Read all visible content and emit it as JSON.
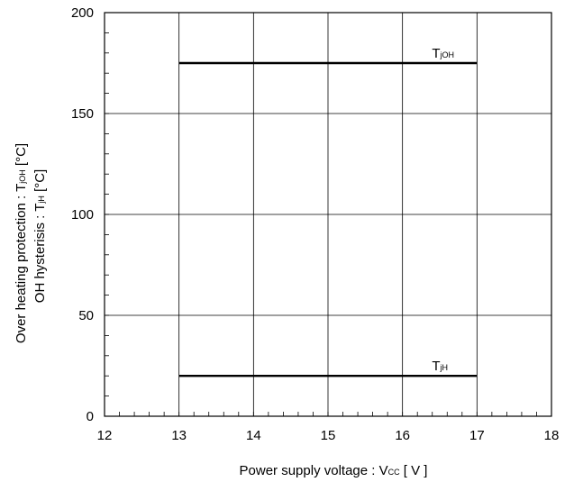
{
  "chart_data": {
    "type": "line",
    "title": "",
    "xlabel": {
      "text": "Power supply voltage  :  V",
      "sub": "CC",
      "suffix": " [ V ]"
    },
    "ylabel": {
      "line1": {
        "text": "Over heating protection : T",
        "sub": "jOH",
        "suffix": " [°C]"
      },
      "line2": {
        "text": "OH hysterisis : T",
        "sub": "jH",
        "suffix": " [°C]"
      }
    },
    "xlim": [
      12,
      18
    ],
    "ylim": [
      0,
      200
    ],
    "x_ticks": [
      12,
      13,
      14,
      15,
      16,
      17,
      18
    ],
    "y_ticks": [
      0,
      50,
      100,
      150,
      200
    ],
    "x_minor_step": 0.2,
    "y_minor_step": 10,
    "grid": true,
    "series": [
      {
        "label_main": "T",
        "label_sub": "jOH",
        "x": [
          13,
          17
        ],
        "y": [
          175,
          175
        ],
        "color": "#000000"
      },
      {
        "label_main": "T",
        "label_sub": "jH",
        "x": [
          13,
          17
        ],
        "y": [
          20,
          20
        ],
        "color": "#000000"
      }
    ]
  }
}
